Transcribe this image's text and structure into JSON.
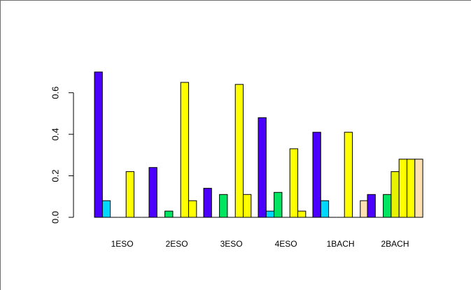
{
  "chart_data": {
    "type": "bar",
    "title": "",
    "xlabel": "",
    "ylabel": "",
    "categories": [
      "1ESO",
      "2ESO",
      "3ESO",
      "4ESO",
      "1BACH",
      "2BACH"
    ],
    "ylim": [
      0,
      0.7
    ],
    "yticks": [
      "0.0",
      "0.2",
      "0.4",
      "0.6"
    ],
    "ytick_values": [
      0,
      0.2,
      0.4,
      0.6
    ],
    "grid": false,
    "legend": "none",
    "series": [
      {
        "color": "#4b00ff",
        "values": [
          0.7,
          0.24,
          0.14,
          0.48,
          0.41,
          0.11
        ]
      },
      {
        "color": "#00d8ff",
        "values": [
          0.08,
          0.0,
          0.0,
          0.03,
          0.08,
          0.0
        ]
      },
      {
        "color": "#00e660",
        "values": [
          0.0,
          0.03,
          0.11,
          0.12,
          0.0,
          0.11
        ]
      },
      {
        "color": "#e6f200",
        "values": [
          0.0,
          0.0,
          0.0,
          0.0,
          0.0,
          0.22
        ]
      },
      {
        "color": "#ffff00",
        "values": [
          0.22,
          0.65,
          0.64,
          0.33,
          0.41,
          0.28
        ]
      },
      {
        "color": "#ffff00",
        "values": [
          0.0,
          0.08,
          0.11,
          0.03,
          0.0,
          0.28
        ]
      },
      {
        "color": "#ffe0b2",
        "values": [
          0.0,
          0.0,
          0.0,
          0.0,
          0.08,
          0.28
        ]
      }
    ]
  }
}
